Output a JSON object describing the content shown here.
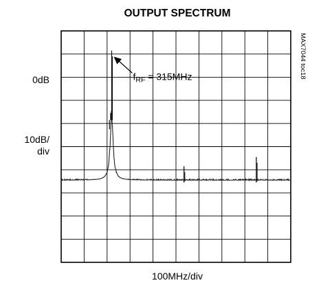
{
  "chart_data": {
    "type": "line",
    "title": "OUTPUT SPECTRUM",
    "xlabel": "100MHz/div",
    "ylabel_top": "0dB",
    "ylabel_scale": [
      "10dB/",
      "div"
    ],
    "side_label": "MAX7044 toc18",
    "annotation": {
      "prefix": "f",
      "subscript": "RF",
      "suffix": " = 315MHz",
      "x_div": 2.2,
      "y_div": 1.2
    },
    "x_divisions": 10,
    "y_divisions": 10,
    "xlim": [
      0,
      10
    ],
    "ylim_div_from_top": [
      0,
      10
    ],
    "grid": true,
    "series": [
      {
        "noise_floor_div": 6.45,
        "peaks": [
          {
            "x_div": 2.2,
            "top_div": 0.85,
            "label": "fundamental"
          },
          {
            "x_div": 5.35,
            "top_div": 5.85,
            "label": "spur"
          },
          {
            "x_div": 8.5,
            "top_div": 5.45,
            "label": "spur"
          }
        ]
      }
    ]
  }
}
